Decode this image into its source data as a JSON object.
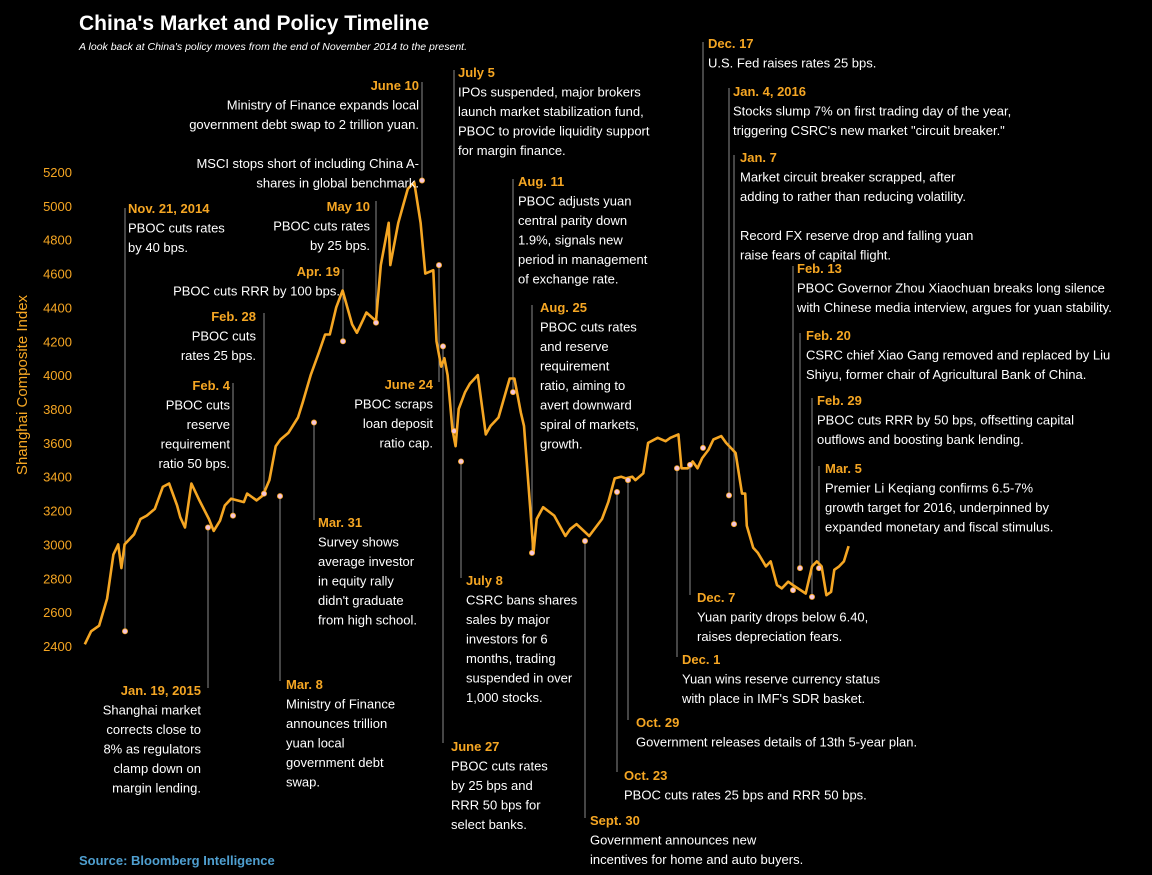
{
  "chart_data": {
    "type": "line",
    "title": "China's Market and Policy Timeline",
    "subtitle": "A look back at China's policy moves from the end of November 2014 to the present.",
    "ylabel": "Shanghai Composite Index",
    "yticks": [
      2400,
      2600,
      2800,
      3000,
      3200,
      3400,
      3600,
      3800,
      4000,
      4200,
      4400,
      4600,
      4800,
      5000,
      5200
    ],
    "ylim": [
      2350,
      5250
    ],
    "xlim": [
      "2014-11-14",
      "2016-03-15"
    ],
    "grid": false,
    "source": "Source: Bloomberg Intelligence",
    "x": [
      "2014-11-17",
      "2014-11-21",
      "2014-11-26",
      "2014-12-01",
      "2014-12-05",
      "2014-12-08",
      "2014-12-10",
      "2014-12-12",
      "2014-12-16",
      "2014-12-18",
      "2014-12-22",
      "2014-12-26",
      "2014-12-31",
      "2015-01-05",
      "2015-01-09",
      "2015-01-14",
      "2015-01-16",
      "2015-01-19",
      "2015-01-23",
      "2015-01-28",
      "2015-02-03",
      "2015-02-06",
      "2015-02-10",
      "2015-02-13",
      "2015-02-17",
      "2015-02-25",
      "2015-02-27",
      "2015-03-02",
      "2015-03-05",
      "2015-03-09",
      "2015-03-13",
      "2015-03-17",
      "2015-03-20",
      "2015-03-25",
      "2015-03-31",
      "2015-04-03",
      "2015-04-08",
      "2015-04-13",
      "2015-04-17",
      "2015-04-20",
      "2015-04-24",
      "2015-04-28",
      "2015-05-04",
      "2015-05-07",
      "2015-05-11",
      "2015-05-13",
      "2015-05-19",
      "2015-05-22",
      "2015-05-27",
      "2015-05-28",
      "2015-06-02",
      "2015-06-05",
      "2015-06-08",
      "2015-06-12",
      "2015-06-16",
      "2015-06-19",
      "2015-06-24",
      "2015-06-26",
      "2015-06-29",
      "2015-07-01",
      "2015-07-03",
      "2015-07-06",
      "2015-07-08",
      "2015-07-10",
      "2015-07-14",
      "2015-07-17",
      "2015-07-22",
      "2015-07-27",
      "2015-07-30",
      "2015-08-04",
      "2015-08-11",
      "2015-08-14",
      "2015-08-18",
      "2015-08-20",
      "2015-08-24",
      "2015-08-26",
      "2015-08-28",
      "2015-09-01",
      "2015-09-08",
      "2015-09-15",
      "2015-09-18",
      "2015-09-22",
      "2015-09-30",
      "2015-10-08",
      "2015-10-12",
      "2015-10-16",
      "2015-10-20",
      "2015-10-23",
      "2015-10-27",
      "2015-10-29",
      "2015-11-03",
      "2015-11-06",
      "2015-11-12",
      "2015-11-17",
      "2015-11-20",
      "2015-11-25",
      "2015-11-27",
      "2015-12-01",
      "2015-12-04",
      "2015-12-07",
      "2015-12-10",
      "2015-12-14",
      "2015-12-17",
      "2015-12-22",
      "2015-12-25",
      "2015-12-29",
      "2015-12-31",
      "2016-01-04",
      "2016-01-06",
      "2016-01-07",
      "2016-01-11",
      "2016-01-14",
      "2016-01-19",
      "2016-01-22",
      "2016-01-26",
      "2016-01-29",
      "2016-02-02",
      "2016-02-05",
      "2016-02-13",
      "2016-02-17",
      "2016-02-20",
      "2016-02-23",
      "2016-02-26",
      "2016-02-29",
      "2016-03-02",
      "2016-03-05",
      "2016-03-08",
      "2016-03-11"
    ],
    "series": [
      {
        "values": [
          2410,
          2487,
          2520,
          2680,
          2940,
          3000,
          2860,
          3000,
          3040,
          3060,
          3150,
          3170,
          3210,
          3340,
          3360,
          3230,
          3160,
          3100,
          3360,
          3260,
          3150,
          3080,
          3140,
          3230,
          3270,
          3250,
          3300,
          3280,
          3260,
          3290,
          3380,
          3580,
          3620,
          3660,
          3750,
          3840,
          4000,
          4130,
          4240,
          4240,
          4400,
          4500,
          4300,
          4250,
          4330,
          4370,
          4320,
          4650,
          4900,
          4650,
          4900,
          5000,
          5100,
          5140,
          4900,
          4600,
          4620,
          4200,
          4050,
          4100,
          4000,
          3680,
          3580,
          3800,
          3900,
          3950,
          4000,
          3650,
          3700,
          3750,
          3980,
          3980,
          3780,
          3700,
          3200,
          2950,
          3150,
          3220,
          3170,
          3050,
          3090,
          3120,
          3050,
          3150,
          3250,
          3390,
          3400,
          3390,
          3400,
          3380,
          3420,
          3600,
          3630,
          3610,
          3630,
          3650,
          3450,
          3450,
          3490,
          3450,
          3510,
          3560,
          3620,
          3640,
          3600,
          3560,
          3540,
          3300,
          3300,
          3110,
          2980,
          2950,
          2870,
          2900,
          2760,
          2740,
          2780,
          2760,
          2710,
          2870,
          2900,
          2870,
          2700,
          2720,
          2850,
          2870,
          2900,
          2990
        ]
      }
    ],
    "annotations": [
      {
        "date": "Nov. 21, 2014",
        "lines": [
          "PBOC cuts rates",
          "by 40 bps."
        ],
        "x": "2014-11-21",
        "y": 2487
      },
      {
        "date": "Jan. 19, 2015",
        "lines": [
          "Shanghai market",
          "corrects close to",
          "8% as regulators",
          "clamp down on",
          "margin lending."
        ],
        "x": "2015-01-19",
        "y": 3100
      },
      {
        "date": "Feb. 4",
        "lines": [
          "PBOC cuts",
          "reserve",
          "requirement",
          "ratio 50 bps."
        ],
        "x": "2015-02-04",
        "y": 3170
      },
      {
        "date": "Feb. 28",
        "lines": [
          "PBOC cuts",
          "rates 25 bps."
        ],
        "x": "2015-02-28",
        "y": 3300
      },
      {
        "date": "Mar. 8",
        "lines": [
          "Ministry of Finance",
          "announces trillion",
          "yuan local",
          "government debt",
          "swap."
        ],
        "x": "2015-03-08",
        "y": 3285
      },
      {
        "date": "Mar. 31",
        "lines": [
          "Survey shows",
          "average investor",
          "in equity rally",
          "didn't graduate",
          "from high school."
        ],
        "x": "2015-03-31",
        "y": 3720
      },
      {
        "date": "Apr. 19",
        "lines": [
          "PBOC cuts RRR by 100 bps."
        ],
        "x": "2015-04-19",
        "y": 4200
      },
      {
        "date": "May 10",
        "lines": [
          "PBOC cuts rates",
          "by 25 bps."
        ],
        "x": "2015-05-10",
        "y": 4310
      },
      {
        "date": "June 10",
        "lines": [
          "Ministry of Finance expands local",
          "government debt swap to 2 trillion yuan.",
          "",
          "MSCI stops short of including China A-",
          "shares in global benchmark."
        ],
        "x": "2015-06-10",
        "y": 5150
      },
      {
        "date": "June 24",
        "lines": [
          "PBOC scraps",
          "loan deposit",
          "ratio cap."
        ],
        "x": "2015-06-24",
        "y": 4650
      },
      {
        "date": "June 27",
        "lines": [
          "PBOC cuts rates",
          "by 25 bps and",
          "RRR 50 bps for",
          "select banks."
        ],
        "x": "2015-06-27",
        "y": 4170
      },
      {
        "date": "July 5",
        "lines": [
          "IPOs suspended, major brokers",
          "launch market stabilization fund,",
          "PBOC to provide liquidity support",
          "for margin finance."
        ],
        "x": "2015-07-05",
        "y": 3670
      },
      {
        "date": "July 8",
        "lines": [
          "CSRC bans shares",
          "sales by major",
          "investors for 6",
          "months, trading",
          "suspended in over",
          "1,000 stocks."
        ],
        "x": "2015-07-08",
        "y": 3490
      },
      {
        "date": "Aug. 11",
        "lines": [
          "PBOC adjusts yuan",
          "central parity down",
          "1.9%, signals new",
          "period in management",
          "of exchange rate."
        ],
        "x": "2015-08-11",
        "y": 3900
      },
      {
        "date": "Aug. 25",
        "lines": [
          "PBOC cuts rates",
          "and reserve",
          "requirement",
          "ratio, aiming to",
          "avert downward",
          "spiral of markets,",
          "growth."
        ],
        "x": "2015-08-25",
        "y": 2950
      },
      {
        "date": "Sept. 30",
        "lines": [
          "Government announces new",
          "incentives for home and auto buyers."
        ],
        "x": "2015-09-30",
        "y": 3020
      },
      {
        "date": "Oct. 23",
        "lines": [
          "PBOC cuts rates 25 bps and RRR 50 bps."
        ],
        "x": "2015-10-23",
        "y": 3310
      },
      {
        "date": "Oct. 29",
        "lines": [
          "Government releases details of 13th 5-year plan."
        ],
        "x": "2015-10-29",
        "y": 3380
      },
      {
        "date": "Dec. 1",
        "lines": [
          "Yuan wins reserve currency status",
          "with place in IMF's SDR basket."
        ],
        "x": "2015-12-01",
        "y": 3450
      },
      {
        "date": "Dec. 7",
        "lines": [
          "Yuan parity drops below 6.40,",
          "raises depreciation fears."
        ],
        "x": "2015-12-07",
        "y": 3470
      },
      {
        "date": "Dec. 17",
        "lines": [
          "U.S. Fed raises rates 25 bps."
        ],
        "x": "2015-12-17",
        "y": 3570
      },
      {
        "date": "Jan. 4, 2016",
        "lines": [
          "Stocks slump 7% on first trading day of the year,",
          "triggering CSRC's new market \"circuit breaker.\""
        ],
        "x": "2016-01-04",
        "y": 3290
      },
      {
        "date": "Jan. 7",
        "lines": [
          "Market circuit breaker scrapped, after",
          "adding to rather than reducing volatility.",
          "",
          "Record FX reserve drop and falling yuan",
          "raise fears of capital flight."
        ],
        "x": "2016-01-07",
        "y": 3120
      },
      {
        "date": "Feb. 13",
        "lines": [
          "PBOC Governor Zhou Xiaochuan breaks long silence",
          "with Chinese media interview, argues for yuan stability."
        ],
        "x": "2016-02-13",
        "y": 2730
      },
      {
        "date": "Feb. 20",
        "lines": [
          "CSRC chief Xiao Gang removed and replaced by Liu",
          "Shiyu, former chair of Agricultural Bank of China."
        ],
        "x": "2016-02-20",
        "y": 2860
      },
      {
        "date": "Feb. 29",
        "lines": [
          "PBOC cuts RRR by 50 bps, offsetting capital",
          "outflows and boosting bank lending."
        ],
        "x": "2016-02-29",
        "y": 2690
      },
      {
        "date": "Mar. 5",
        "lines": [
          "Premier Li Keqiang confirms 6.5-7%",
          "growth target for 2016, underpinned by",
          "expanded monetary and fiscal stimulus."
        ],
        "x": "2016-03-05",
        "y": 2860
      }
    ]
  }
}
